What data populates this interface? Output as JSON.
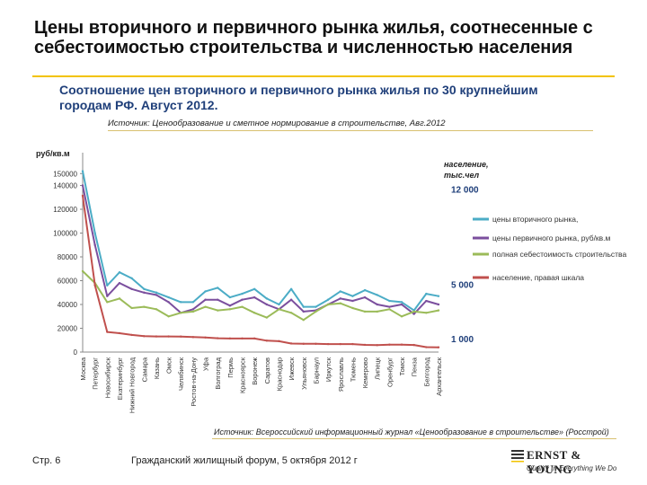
{
  "slide": {
    "title": "Цены вторичного и первичного рынка жилья, соотнесенные с себестоимостью строительства и численностью населения"
  },
  "chart_header": {
    "title": "Соотношение цен вторичного и первичного рынка жилья по 30 крупнейшим городам РФ. Август 2012.",
    "source": "Источник: Ценообразование и сметное нормирование в строительстве, Авг.2012"
  },
  "footer": {
    "source": "Источник: Всероссийский информационный журнал «Ценообразование в строительстве» (Росстрой)",
    "page": "Стр. 6",
    "forum": "Гражданский жилищный форум, 5 октября 2012 г",
    "logo_name": "ERNST & YOUNG",
    "logo_tagline": "Quality In Everything We Do"
  },
  "chart_data": {
    "type": "line",
    "ylabel": "руб/кв.м",
    "y2label": "население, тыс.чел",
    "ylim": [
      0,
      160000
    ],
    "yticks": [
      0,
      20000,
      40000,
      60000,
      80000,
      100000,
      120000,
      140000,
      150000
    ],
    "yticklabels": [
      "0",
      "20000",
      "40000",
      "60000",
      "80000",
      "100000",
      "120000",
      "140000",
      "150000"
    ],
    "y2lim": [
      0,
      14000
    ],
    "y2ticks": [
      1000,
      5000,
      12000
    ],
    "y2ticklabels": [
      "1 000",
      "5 000",
      "12 000"
    ],
    "legend_position": "right",
    "categories": [
      "Москва",
      "Петербург",
      "Новосибирск",
      "Екатеринбург",
      "Нижний Новгород",
      "Самара",
      "Казань",
      "Омск",
      "Челябинск",
      "Ростов-на-Дону",
      "Уфа",
      "Волгоград",
      "Пермь",
      "Красноярск",
      "Воронеж",
      "Саратов",
      "Краснодар",
      "Ижевск",
      "Ульяновск",
      "Барнаул",
      "Иркутск",
      "Ярославль",
      "Тюмень",
      "Кемерово",
      "Липецк",
      "Оренбург",
      "Томск",
      "Пенза",
      "Белгород",
      "Архангельск"
    ],
    "series": [
      {
        "name": "цены вторичного рынка,",
        "axis": "left",
        "color": "#4bacc6",
        "values": [
          152000,
          100000,
          56000,
          67000,
          62000,
          53000,
          50000,
          46000,
          42000,
          42000,
          51000,
          54000,
          46000,
          49000,
          53000,
          45000,
          40000,
          53000,
          38000,
          38000,
          44000,
          51000,
          47000,
          52000,
          48000,
          43000,
          42000,
          35000,
          49000,
          47000
        ]
      },
      {
        "name": "цены первичного рынка, руб/кв.м",
        "axis": "left",
        "color": "#7b4f9e",
        "values": [
          140000,
          90000,
          47000,
          58000,
          53000,
          50000,
          48000,
          42000,
          33000,
          36000,
          44000,
          44000,
          39000,
          44000,
          46000,
          40000,
          36000,
          44000,
          34000,
          35000,
          40000,
          45000,
          43000,
          46000,
          40000,
          38000,
          40000,
          32000,
          43000,
          40000
        ]
      },
      {
        "name": "полная себестоимость строительства",
        "axis": "left",
        "color": "#9bbb59",
        "values": [
          68000,
          58000,
          42000,
          45000,
          37000,
          38000,
          36000,
          30000,
          33000,
          34000,
          38000,
          35000,
          36000,
          38000,
          33000,
          29000,
          36000,
          33000,
          27000,
          34000,
          40000,
          41000,
          37000,
          34000,
          34000,
          36000,
          30000,
          34000,
          33000,
          35000
        ]
      },
      {
        "name": "население, правая шкала",
        "axis": "right",
        "color": "#c0504d",
        "values": [
          11500,
          4900,
          1480,
          1390,
          1260,
          1170,
          1150,
          1150,
          1140,
          1100,
          1070,
          1020,
          1000,
          1000,
          1000,
          840,
          800,
          630,
          610,
          610,
          590,
          590,
          590,
          530,
          510,
          550,
          550,
          520,
          360,
          350
        ]
      }
    ]
  }
}
